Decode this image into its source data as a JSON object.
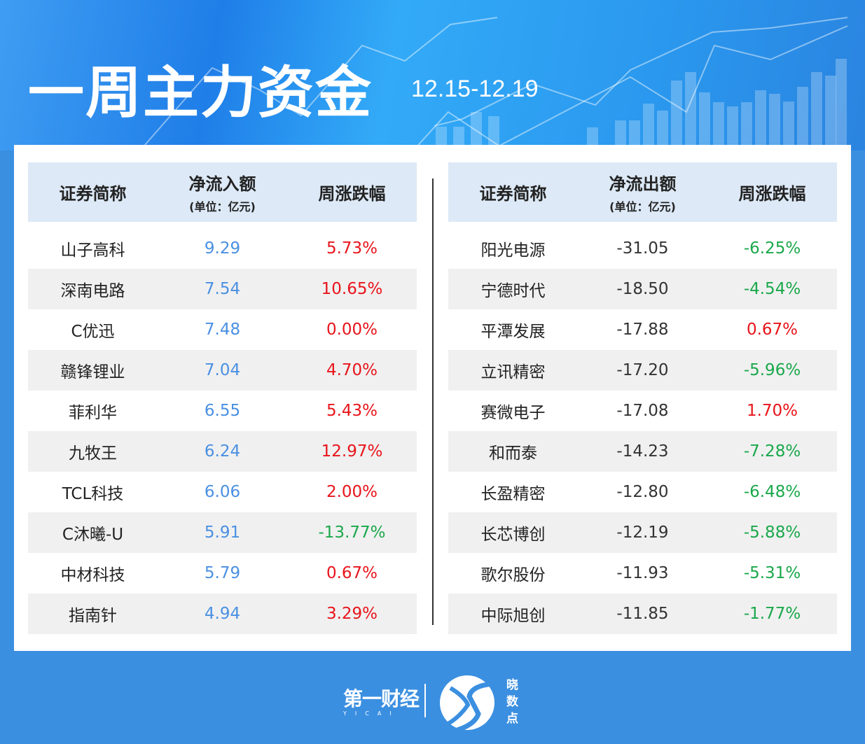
{
  "header": {
    "title": "一周主力资金",
    "date_range": "12.15-12.19"
  },
  "colors": {
    "up": "#e8141b",
    "down": "#1aa84b",
    "inflow_value": "#4a90e2",
    "header_bg": "#dde9f6",
    "brand_blue": "#3b8fe0"
  },
  "inflow": {
    "headers": {
      "name": "证券简称",
      "value": "净流入额",
      "unit": "(单位：亿元)",
      "change": "周涨跌幅"
    },
    "rows": [
      {
        "name": "山子高科",
        "value": "9.29",
        "change": "5.73%",
        "dir": "up"
      },
      {
        "name": "深南电路",
        "value": "7.54",
        "change": "10.65%",
        "dir": "up"
      },
      {
        "name": "C优迅",
        "value": "7.48",
        "change": "0.00%",
        "dir": "up"
      },
      {
        "name": "赣锋锂业",
        "value": "7.04",
        "change": "4.70%",
        "dir": "up"
      },
      {
        "name": "菲利华",
        "value": "6.55",
        "change": "5.43%",
        "dir": "up"
      },
      {
        "name": "九牧王",
        "value": "6.24",
        "change": "12.97%",
        "dir": "up"
      },
      {
        "name": "TCL科技",
        "value": "6.06",
        "change": "2.00%",
        "dir": "up"
      },
      {
        "name": "C沐曦-U",
        "value": "5.91",
        "change": "-13.77%",
        "dir": "down"
      },
      {
        "name": "中材科技",
        "value": "5.79",
        "change": "0.67%",
        "dir": "up"
      },
      {
        "name": "指南针",
        "value": "4.94",
        "change": "3.29%",
        "dir": "up"
      }
    ]
  },
  "outflow": {
    "headers": {
      "name": "证券简称",
      "value": "净流出额",
      "unit": "(单位：亿元)",
      "change": "周涨跌幅"
    },
    "rows": [
      {
        "name": "阳光电源",
        "value": "-31.05",
        "change": "-6.25%",
        "dir": "down"
      },
      {
        "name": "宁德时代",
        "value": "-18.50",
        "change": "-4.54%",
        "dir": "down"
      },
      {
        "name": "平潭发展",
        "value": "-17.88",
        "change": "0.67%",
        "dir": "up"
      },
      {
        "name": "立讯精密",
        "value": "-17.20",
        "change": "-5.96%",
        "dir": "down"
      },
      {
        "name": "赛微电子",
        "value": "-17.08",
        "change": "1.70%",
        "dir": "up"
      },
      {
        "name": "和而泰",
        "value": "-14.23",
        "change": "-7.28%",
        "dir": "down"
      },
      {
        "name": "长盈精密",
        "value": "-12.80",
        "change": "-6.48%",
        "dir": "down"
      },
      {
        "name": "长芯博创",
        "value": "-12.19",
        "change": "-5.88%",
        "dir": "down"
      },
      {
        "name": "歌尔股份",
        "value": "-11.93",
        "change": "-5.31%",
        "dir": "down"
      },
      {
        "name": "中际旭创",
        "value": "-11.85",
        "change": "-1.77%",
        "dir": "down"
      }
    ]
  },
  "footer": {
    "brand": "第一财经",
    "brand_en": "YICAI",
    "partner": "晓数点"
  }
}
